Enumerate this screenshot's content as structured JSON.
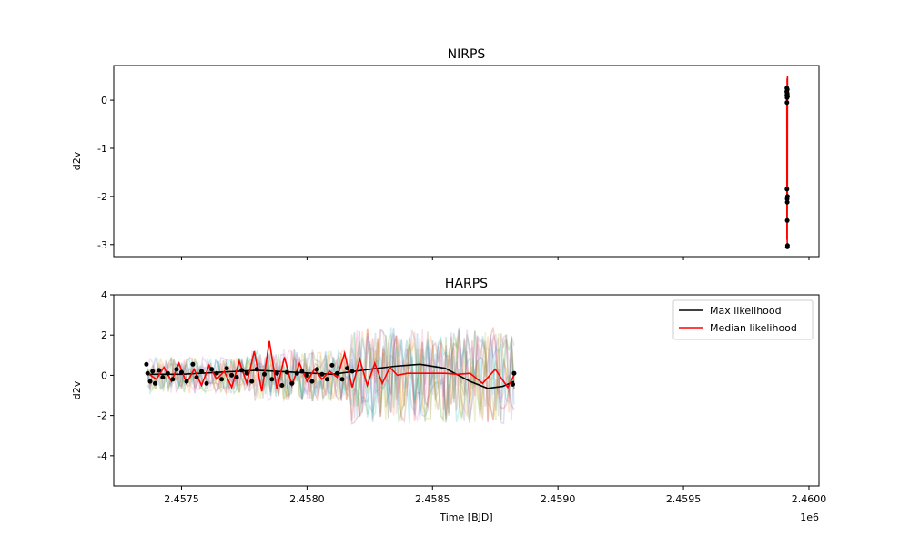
{
  "chart_data": [
    {
      "type": "line",
      "title": "NIRPS",
      "xlabel": "",
      "ylabel": "d2v",
      "xlim": [
        2457230,
        2460040
      ],
      "ylim": [
        -3.25,
        0.72
      ],
      "yticks": [
        0,
        -1,
        -2,
        -3
      ],
      "xticks": [
        2457500,
        2458000,
        2458500,
        2459000,
        2459500,
        2460000
      ],
      "show_xtick_labels": false,
      "series": [
        {
          "name": "",
          "color": "#ff0000",
          "style": "line",
          "x": [
            2459912,
            2459912.3,
            2459912.6,
            2459912.9,
            2459913.2,
            2459913.5,
            2459913.8,
            2459914.1,
            2459914.4
          ],
          "y": [
            0.25,
            -2.9,
            0.1,
            -1.95,
            0.45,
            -3.0,
            0.2,
            -2.1,
            0.5
          ]
        },
        {
          "name": "",
          "color": "#000000",
          "style": "points",
          "x": [
            2459911.6,
            2459911.9,
            2459912.1,
            2459912.4,
            2459912.7,
            2459913.0,
            2459913.3,
            2459913.6,
            2459913.9,
            2459914.2,
            2459914.5,
            2459914.8,
            2459912.2,
            2459913.1,
            2459914.0,
            2459914.6
          ],
          "y": [
            0.18,
            0.25,
            0.1,
            -1.85,
            0.05,
            -2.05,
            -2.12,
            -2.5,
            0.12,
            -3.05,
            -3.02,
            0.08,
            -0.05,
            0.15,
            0.22,
            -2.0
          ]
        }
      ]
    },
    {
      "type": "line",
      "title": "HARPS",
      "xlabel": "Time [BJD]",
      "ylabel": "d2v",
      "offset_label": "1e6",
      "xlim": [
        2457230,
        2460040
      ],
      "ylim": [
        -5.5,
        4.0
      ],
      "yticks": [
        4,
        2,
        0,
        -2,
        -4
      ],
      "xticks": [
        2457500,
        2458000,
        2458500,
        2459000,
        2459500,
        2460000
      ],
      "xtick_labels": [
        "2.4575",
        "2.4580",
        "2.4585",
        "2.4590",
        "2.4595",
        "2.4600"
      ],
      "sample_band": {
        "x_start": 2457365,
        "x_end": 2458825,
        "count": 10,
        "colors": [
          "#1f77b4",
          "#ff7f0e",
          "#2ca02c",
          "#d62728",
          "#9467bd",
          "#8c564b",
          "#e377c2",
          "#7f7f7f",
          "#bcbd22",
          "#17becf"
        ]
      },
      "series": [
        {
          "name": "Max likelihood",
          "color": "#000000",
          "style": "line",
          "x": [
            2457365,
            2457500,
            2457650,
            2457800,
            2457950,
            2458100,
            2458250,
            2458350,
            2458450,
            2458550,
            2458650,
            2458720,
            2458780,
            2458825
          ],
          "y": [
            0.05,
            0.05,
            0.15,
            0.25,
            0.15,
            0.05,
            0.3,
            0.45,
            0.55,
            0.35,
            -0.3,
            -0.65,
            -0.55,
            -0.3
          ]
        },
        {
          "name": "Median likelihood",
          "color": "#ff0000",
          "style": "line",
          "x": [
            2457365,
            2457400,
            2457430,
            2457460,
            2457490,
            2457520,
            2457550,
            2457580,
            2457610,
            2457640,
            2457670,
            2457700,
            2457730,
            2457760,
            2457790,
            2457820,
            2457850,
            2457880,
            2457910,
            2457940,
            2457970,
            2458000,
            2458030,
            2458060,
            2458090,
            2458120,
            2458150,
            2458180,
            2458210,
            2458240,
            2458270,
            2458300,
            2458330,
            2458360,
            2458400,
            2458450,
            2458500,
            2458550,
            2458600,
            2458650,
            2458700,
            2458750,
            2458800,
            2458825
          ],
          "y": [
            0.1,
            -0.2,
            0.4,
            -0.3,
            0.6,
            -0.4,
            0.3,
            -0.5,
            0.5,
            -0.2,
            0.2,
            -0.6,
            0.7,
            -0.4,
            1.2,
            -0.8,
            1.7,
            -0.7,
            0.9,
            -0.5,
            0.6,
            -0.3,
            0.3,
            -0.2,
            0.2,
            -0.1,
            1.1,
            -0.6,
            0.8,
            -0.5,
            0.6,
            -0.4,
            0.4,
            0.0,
            0.1,
            0.1,
            0.1,
            0.1,
            0.05,
            0.1,
            -0.4,
            0.3,
            -0.6,
            0.0
          ]
        },
        {
          "name": "",
          "color": "#000000",
          "style": "points",
          "x": [
            2457360,
            2457365,
            2457375,
            2457385,
            2457395,
            2457410,
            2457425,
            2457445,
            2457465,
            2457480,
            2457500,
            2457520,
            2457545,
            2457560,
            2457580,
            2457600,
            2457620,
            2457640,
            2457660,
            2457680,
            2457700,
            2457720,
            2457740,
            2457760,
            2457780,
            2457800,
            2457830,
            2457860,
            2457880,
            2457900,
            2457920,
            2457940,
            2457960,
            2457980,
            2458000,
            2458020,
            2458040,
            2458060,
            2458080,
            2458100,
            2458120,
            2458140,
            2458160,
            2458180,
            2458825,
            2458820
          ],
          "y": [
            0.55,
            0.1,
            -0.3,
            0.2,
            -0.4,
            0.25,
            -0.1,
            0.1,
            -0.2,
            0.3,
            0.15,
            -0.3,
            0.55,
            -0.1,
            0.2,
            -0.4,
            0.3,
            0.1,
            -0.2,
            0.35,
            0.0,
            -0.1,
            0.25,
            0.1,
            -0.3,
            0.3,
            0.05,
            -0.2,
            0.1,
            -0.5,
            0.15,
            -0.4,
            0.1,
            0.2,
            0.0,
            -0.3,
            0.3,
            0.05,
            -0.2,
            0.5,
            0.1,
            -0.2,
            0.35,
            0.2,
            0.1,
            -0.45
          ]
        }
      ],
      "legend": {
        "placement": "top-right",
        "entries": [
          "Max likelihood",
          "Median likelihood"
        ]
      }
    }
  ]
}
